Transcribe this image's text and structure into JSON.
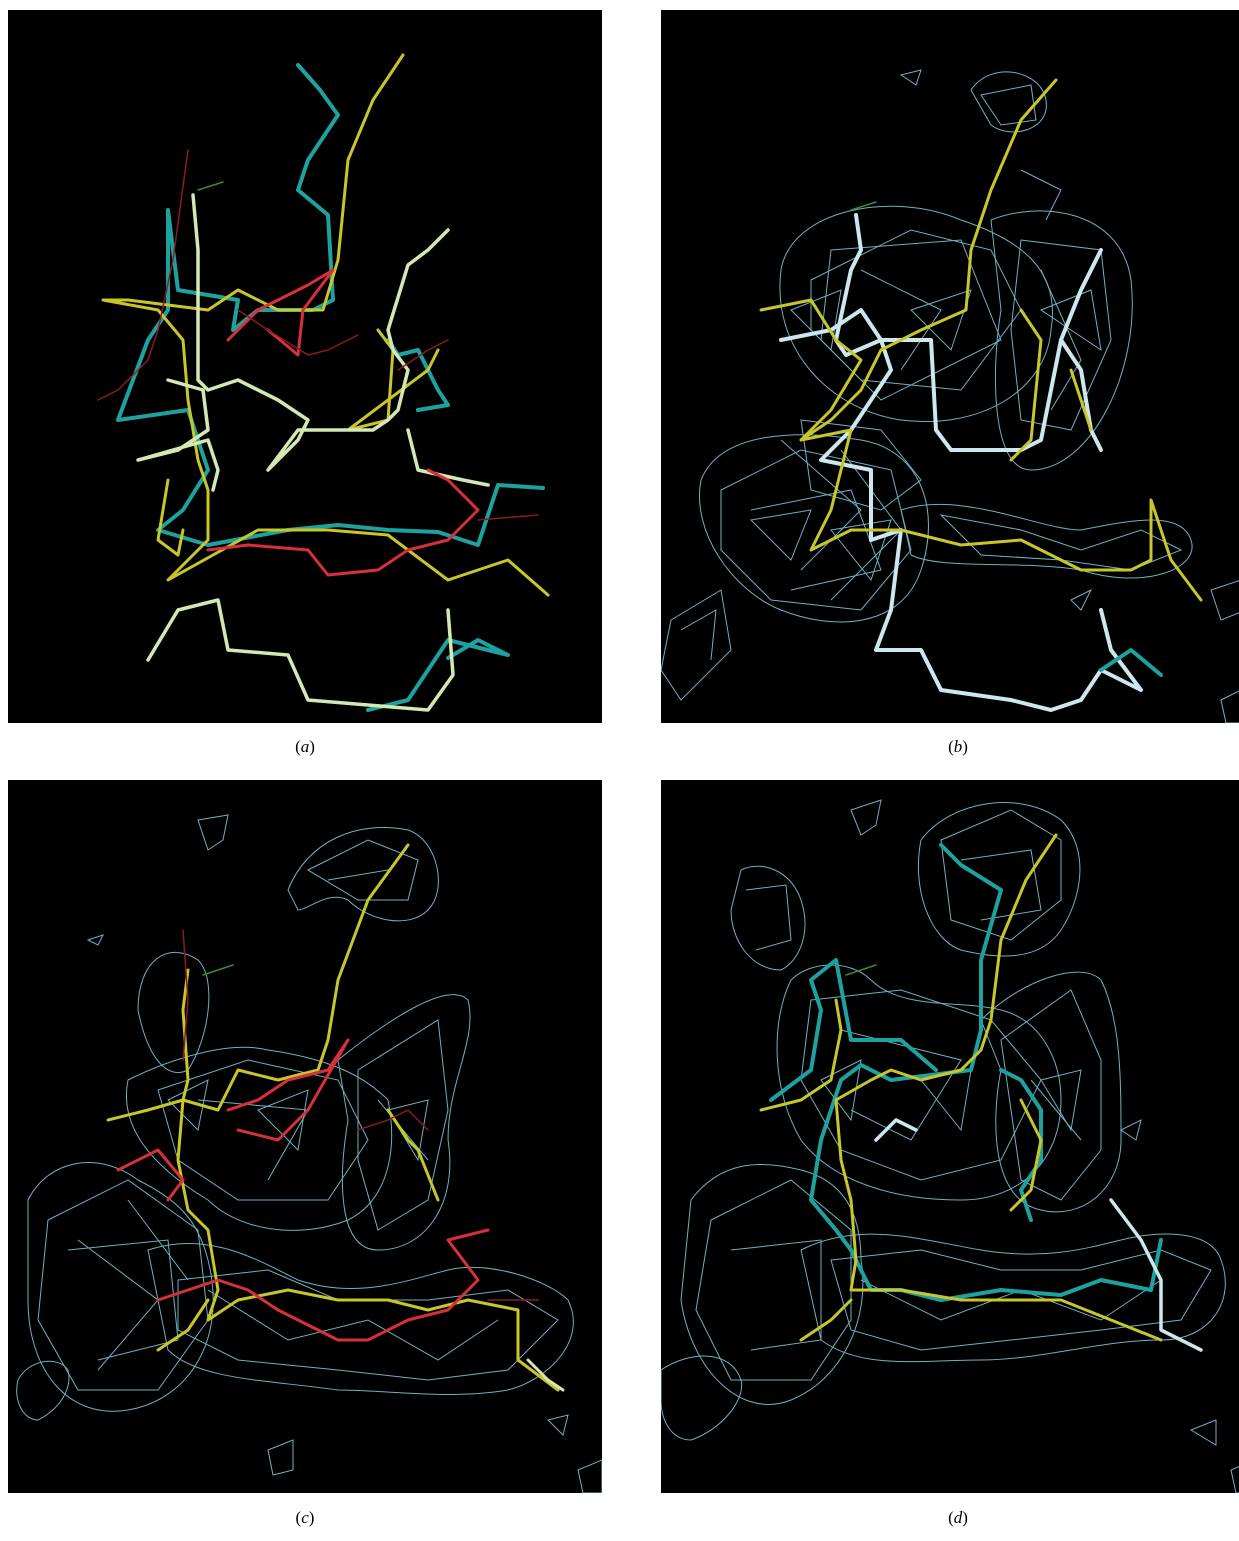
{
  "figure": {
    "panels": [
      {
        "id": "a",
        "letter": "a",
        "content": "superposed-models"
      },
      {
        "id": "b",
        "letter": "b",
        "content": "density-map-with-model"
      },
      {
        "id": "c",
        "letter": "c",
        "content": "density-map-with-model"
      },
      {
        "id": "d",
        "letter": "d",
        "content": "density-map-with-model"
      }
    ]
  },
  "colors": {
    "background": "#000000",
    "mesh": "#7fd3e6",
    "model_teal": "#1ea2a0",
    "model_yellow": "#c8c62a",
    "model_pale": "#d4e8b4",
    "model_red": "#d8303a",
    "model_white": "#cde7ee"
  }
}
